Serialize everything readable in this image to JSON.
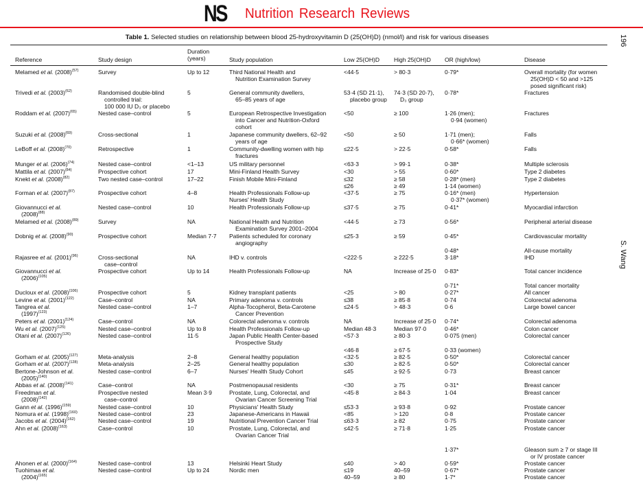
{
  "journal": {
    "logo": "NS",
    "title": "Nutrition Research Reviews"
  },
  "page_number": "196",
  "running_author": "S. Wang",
  "table": {
    "label": "Table 1.",
    "caption": "Selected studies on relationship between blood 25-hydroxyvitamin D (25(OH)D) (nmol/l) and risk for various diseases",
    "headers": {
      "reference": "Reference",
      "design": "Study design",
      "duration": [
        "Duration",
        "(years)"
      ],
      "population": "Study population",
      "low": "Low 25(OH)D",
      "high": "High 25(OH)D",
      "or": "OR (high/low)",
      "disease": "Disease"
    },
    "etal": "et al.",
    "rows": [
      {
        "ref": {
          "author": "Melamed",
          "year": "(2008)",
          "sup": "(57)"
        },
        "design": [
          "Survey"
        ],
        "duration": [
          "Up to 12"
        ],
        "population": [
          "Third National Health and",
          "Nutrition Examination Survey"
        ],
        "low": [
          "<44·5"
        ],
        "high": [
          "> 80·3"
        ],
        "or": [
          "0·79*"
        ],
        "disease": [
          "Overall mortality (for women",
          "25(OH)D < 50 and >125",
          "posed significant risk)"
        ]
      },
      {
        "ref": {
          "author": "Trivedi",
          "year": "(2003)",
          "sup": "(62)"
        },
        "design": [
          "Randomised double-blind",
          "controlled trial:",
          "100 000 IU D₃ or placebo"
        ],
        "duration": [
          "5"
        ],
        "population": [
          "General community dwellers,",
          "65–85 years of age"
        ],
        "low": [
          "53·4 (SD 21·1),",
          "placebo group"
        ],
        "high": [
          "74·3 (SD 20·7),",
          "D₃ group"
        ],
        "or": [
          "0·78*"
        ],
        "disease": [
          "Fractures"
        ]
      },
      {
        "ref": {
          "author": "Roddam",
          "year": "(2007)",
          "sup": "(65)"
        },
        "design": [
          "Nested case–control"
        ],
        "duration": [
          "5"
        ],
        "population": [
          "European Retrospective Investigation",
          "into Cancer and Nutrition-Oxford",
          "cohort"
        ],
        "low": [
          "<50"
        ],
        "high": [
          "≥ 100"
        ],
        "or": [
          "1·26 (men);",
          "0·94 (women)"
        ],
        "disease": [
          "Fractures"
        ]
      },
      {
        "ref": {
          "author": "Suzuki",
          "year": "(2008)",
          "sup": "(69)"
        },
        "design": [
          "Cross-sectional"
        ],
        "duration": [
          "1"
        ],
        "population": [
          "Japanese community dwellers, 62–92",
          "years of age"
        ],
        "low": [
          "<50"
        ],
        "high": [
          "≥ 50"
        ],
        "or": [
          "1·71 (men);",
          "0·66* (women)"
        ],
        "disease": [
          "Falls"
        ]
      },
      {
        "ref": {
          "author": "LeBoff",
          "year": "(2008)",
          "sup": "(70)"
        },
        "design": [
          "Retrospective"
        ],
        "duration": [
          "1"
        ],
        "population": [
          "Community-dwelling women with hip",
          "fractures"
        ],
        "low": [
          "≤22·5"
        ],
        "high": [
          "> 22·5"
        ],
        "or": [
          "0·58*"
        ],
        "disease": [
          "Falls"
        ]
      },
      {
        "ref": {
          "author": "Munger",
          "year": "(2006)",
          "sup": "(74)"
        },
        "design": [
          "Nested case–control"
        ],
        "duration": [
          "<1–13"
        ],
        "population": [
          "US military personnel"
        ],
        "low": [
          "<63·3"
        ],
        "high": [
          "> 99·1"
        ],
        "or": [
          "0·38*"
        ],
        "disease": [
          "Multiple sclerosis"
        ]
      },
      {
        "ref": {
          "author": "Mattila",
          "year": "(2007)",
          "sup": "(84)"
        },
        "design": [
          "Prospective cohort"
        ],
        "duration": [
          "17"
        ],
        "population": [
          "Mini-Finland Health Survey"
        ],
        "low": [
          "<30"
        ],
        "high": [
          "> 55"
        ],
        "or": [
          "0·60*"
        ],
        "disease": [
          "Type 2 diabetes"
        ]
      },
      {
        "ref": {
          "author": "Knekt",
          "year": "(2008)",
          "sup": "(82)"
        },
        "design": [
          "Two nested case–control"
        ],
        "duration": [
          "17–22"
        ],
        "population": [
          "Finish Mobile Mini-Finland"
        ],
        "low": [
          "≤32",
          "≤26"
        ],
        "high": [
          "≥ 58",
          "≥ 49"
        ],
        "or": [
          "0·28* (men)",
          "1·14 (women)"
        ],
        "disease": [
          "Type 2 diabetes"
        ]
      },
      {
        "ref": {
          "author": "Forman",
          "year": "(2007)",
          "sup": "(87)"
        },
        "design": [
          "Prospective cohort"
        ],
        "duration": [
          "4–8"
        ],
        "population": [
          "Health Professionals Follow-up",
          "Nurses' Health Study"
        ],
        "low": [
          "<37·5"
        ],
        "high": [
          "≥ 75"
        ],
        "or": [
          "0·16* (men)",
          "0·37* (women)"
        ],
        "disease": [
          "Hypertension"
        ]
      },
      {
        "ref": {
          "author": "Giovannucci",
          "year": "(2008)",
          "sup": "(88)"
        },
        "design": [
          "Nested case–control"
        ],
        "duration": [
          "10"
        ],
        "population": [
          "Health Professionals Follow-up"
        ],
        "low": [
          "≤37·5"
        ],
        "high": [
          "≥ 75"
        ],
        "or": [
          "0·41*"
        ],
        "disease": [
          "Myocardial infarction"
        ]
      },
      {
        "ref": {
          "author": "Melamed",
          "year": "(2008)",
          "sup": "(89)"
        },
        "design": [
          "Survey"
        ],
        "duration": [
          "NA"
        ],
        "population": [
          "National Health and Nutrition",
          "Examination Survey 2001–2004"
        ],
        "low": [
          "<44·5"
        ],
        "high": [
          "≥ 73"
        ],
        "or": [
          "0·56*"
        ],
        "disease": [
          "Peripheral arterial disease"
        ]
      },
      {
        "ref": {
          "author": "Dobnig",
          "year": "(2008)",
          "sup": "(90)"
        },
        "design": [
          "Prospective cohort"
        ],
        "duration": [
          "Median 7·7"
        ],
        "population": [
          "Patients scheduled for coronary",
          "angiography"
        ],
        "low": [
          "≤25·3"
        ],
        "high": [
          "≥ 59"
        ],
        "or": [
          "0·45*"
        ],
        "disease": [
          "Cardiovascular mortality"
        ]
      },
      {
        "ref": null,
        "design": [],
        "duration": [],
        "population": [],
        "low": [],
        "high": [],
        "or": [
          "0·48*"
        ],
        "disease": [
          "All-cause mortality"
        ]
      },
      {
        "ref": {
          "author": "Rajasree",
          "year": "(2001)",
          "sup": "(96)"
        },
        "design": [
          "Cross-sectional",
          "case–control"
        ],
        "duration": [
          "NA"
        ],
        "population": [
          "IHD v. controls"
        ],
        "low": [
          "<222·5"
        ],
        "high": [
          "≥ 222·5"
        ],
        "or": [
          "3·18*"
        ],
        "disease": [
          "IHD"
        ]
      },
      {
        "ref": {
          "author": "Giovannucci",
          "year": "(2006)",
          "sup": "(105)"
        },
        "design": [
          "Prospective cohort"
        ],
        "duration": [
          "Up to 14"
        ],
        "population": [
          "Health Professionals Follow-up"
        ],
        "low": [
          "NA"
        ],
        "high": [
          "Increase of 25·0"
        ],
        "or": [
          "0·83*"
        ],
        "disease": [
          "Total cancer incidence"
        ]
      },
      {
        "ref": null,
        "design": [],
        "duration": [],
        "population": [],
        "low": [],
        "high": [],
        "or": [
          "0·71*"
        ],
        "disease": [
          "Total cancer mortality"
        ]
      },
      {
        "ref": {
          "author": "Ducloux",
          "year": "(2008)",
          "sup": "(106)"
        },
        "design": [
          "Prospective cohort"
        ],
        "duration": [
          "5"
        ],
        "population": [
          "Kidney transplant patients"
        ],
        "low": [
          "<25"
        ],
        "high": [
          "> 80"
        ],
        "or": [
          "0·27*"
        ],
        "disease": [
          "All cancer"
        ]
      },
      {
        "ref": {
          "author": "Levine",
          "year": "(2001)",
          "sup": "(122)"
        },
        "design": [
          "Case–control"
        ],
        "duration": [
          "NA"
        ],
        "population": [
          "Primary adenoma v. controls"
        ],
        "low": [
          "≤38"
        ],
        "high": [
          "≥ 85·8"
        ],
        "or": [
          "0·74"
        ],
        "disease": [
          "Colorectal adenoma"
        ]
      },
      {
        "ref": {
          "author": "Tangrea",
          "year": "(1997)",
          "sup": "(123)"
        },
        "design": [
          "Nested case–control"
        ],
        "duration": [
          "1–7"
        ],
        "population": [
          "Alpha-Tocopherol, Beta-Carotene",
          "Cancer Prevention"
        ],
        "low": [
          "≤24·5"
        ],
        "high": [
          "> 48·3"
        ],
        "or": [
          "0·6"
        ],
        "disease": [
          "Large bowel cancer"
        ]
      },
      {
        "ref": {
          "author": "Peters",
          "year": "(2001)",
          "sup": "(124)"
        },
        "design": [
          "Case–control"
        ],
        "duration": [
          "NA"
        ],
        "population": [
          "Colorectal adenoma v. controls"
        ],
        "low": [
          "NA"
        ],
        "high": [
          "Increase of 25·0"
        ],
        "or": [
          "0·74*"
        ],
        "disease": [
          "Colorectal adenoma"
        ]
      },
      {
        "ref": {
          "author": "Wu",
          "year": "(2007)",
          "sup": "(125)"
        },
        "design": [
          "Nested case–control"
        ],
        "duration": [
          "Up to 8"
        ],
        "population": [
          "Health Professionals Follow-up"
        ],
        "low": [
          "Median 48·3"
        ],
        "high": [
          "Median 97·0"
        ],
        "or": [
          "0·46*"
        ],
        "disease": [
          "Colon cancer"
        ]
      },
      {
        "ref": {
          "author": "Otani",
          "year": "(2007)",
          "sup": "(126)"
        },
        "design": [
          "Nested case–control"
        ],
        "duration": [
          "11·5"
        ],
        "population": [
          "Japan Public Health Center-based",
          "Prospective Study"
        ],
        "low": [
          "<57·3"
        ],
        "high": [
          "≥ 80·3"
        ],
        "or": [
          "0·075 (men)"
        ],
        "disease": [
          "Colorectal cancer"
        ]
      },
      {
        "ref": null,
        "design": [],
        "duration": [],
        "population": [],
        "low": [
          "<46·8"
        ],
        "high": [
          "≥ 67·5"
        ],
        "or": [
          "0·33 (women)"
        ],
        "disease": []
      },
      {
        "ref": {
          "author": "Gorham",
          "year": "(2005)",
          "sup": "(127)"
        },
        "design": [
          "Meta-analysis"
        ],
        "duration": [
          "2–8"
        ],
        "population": [
          "General healthy population"
        ],
        "low": [
          "<32·5"
        ],
        "high": [
          "≥ 82·5"
        ],
        "or": [
          "0·50*"
        ],
        "disease": [
          "Colorectal cancer"
        ]
      },
      {
        "ref": {
          "author": "Gorham",
          "year": "(2007)",
          "sup": "(128)"
        },
        "design": [
          "Meta-analysis"
        ],
        "duration": [
          "2–25"
        ],
        "population": [
          "General healthy population"
        ],
        "low": [
          "≤30"
        ],
        "high": [
          "≥ 82·5"
        ],
        "or": [
          "0·50*"
        ],
        "disease": [
          "Colorectal cancer"
        ]
      },
      {
        "ref": {
          "author": "Bertone-Johnson",
          "year": "(2005)",
          "sup": "(140)"
        },
        "design": [
          "Nested case–control"
        ],
        "duration": [
          "6–7"
        ],
        "population": [
          "Nurses' Health Study Cohort"
        ],
        "low": [
          "≤45"
        ],
        "high": [
          "≥ 92·5"
        ],
        "or": [
          "0·73"
        ],
        "disease": [
          "Breast cancer"
        ]
      },
      {
        "ref": {
          "author": "Abbas",
          "year": "(2008)",
          "sup": "(141)"
        },
        "design": [
          "Case–control"
        ],
        "duration": [
          "NA"
        ],
        "population": [
          "Postmenopausal residents"
        ],
        "low": [
          "<30"
        ],
        "high": [
          "≥ 75"
        ],
        "or": [
          "0·31*"
        ],
        "disease": [
          "Breast cancer"
        ]
      },
      {
        "ref": {
          "author": "Freedman",
          "year": "(2008)",
          "sup": "(142)"
        },
        "design": [
          "Prospective nested",
          "case–control"
        ],
        "duration": [
          "Mean 3·9"
        ],
        "population": [
          "Prostate, Lung, Colorectal, and",
          "Ovarian Cancer Screening Trial"
        ],
        "low": [
          "<45·8"
        ],
        "high": [
          "≥ 84·3"
        ],
        "or": [
          "1·04"
        ],
        "disease": [
          "Breast cancer"
        ]
      },
      {
        "ref": {
          "author": "Gann",
          "year": "(1996)",
          "sup": "(159)"
        },
        "design": [
          "Nested case–control"
        ],
        "duration": [
          "10"
        ],
        "population": [
          "Physicians' Health Study"
        ],
        "low": [
          "≤53·3"
        ],
        "high": [
          "≥ 93·8"
        ],
        "or": [
          "0·92"
        ],
        "disease": [
          "Prostate cancer"
        ]
      },
      {
        "ref": {
          "author": "Nomura",
          "year": "(1998)",
          "sup": "(160)"
        },
        "design": [
          "Nested case–control"
        ],
        "duration": [
          "23"
        ],
        "population": [
          "Japanese-Americans in Hawaii"
        ],
        "low": [
          "<85"
        ],
        "high": [
          "> 120"
        ],
        "or": [
          "0·8"
        ],
        "disease": [
          "Prostate cancer"
        ]
      },
      {
        "ref": {
          "author": "Jacobs",
          "year": "(2004)",
          "sup": "(162)"
        },
        "design": [
          "Nested case–control"
        ],
        "duration": [
          "19"
        ],
        "population": [
          "Nutritional Prevention Cancer Trial"
        ],
        "low": [
          "≤63·3"
        ],
        "high": [
          "≥ 82"
        ],
        "or": [
          "0·75"
        ],
        "disease": [
          "Prostate cancer"
        ]
      },
      {
        "ref": {
          "author": "Ahn",
          "year": "(2008)",
          "sup": "(163)"
        },
        "design": [
          "Case–control"
        ],
        "duration": [
          "10"
        ],
        "population": [
          "Prostate, Lung, Colorectal, and",
          "Ovarian Cancer Trial"
        ],
        "low": [
          "≤42·5"
        ],
        "high": [
          "≥ 71·8"
        ],
        "or": [
          "1·25"
        ],
        "disease": [
          "Prostate cancer"
        ]
      },
      {
        "ref": null,
        "design": [],
        "duration": [],
        "population": [],
        "low": [],
        "high": [],
        "or": [
          "1·37*"
        ],
        "disease": [
          "Gleason sum ≥ 7 or stage III",
          "or IV prostate cancer"
        ]
      },
      {
        "ref": {
          "author": "Ahonen",
          "year": "(2000)",
          "sup": "(164)"
        },
        "design": [
          "Nested case–control"
        ],
        "duration": [
          "13"
        ],
        "population": [
          "Helsinki Heart Study"
        ],
        "low": [
          "≤40"
        ],
        "high": [
          "> 40"
        ],
        "or": [
          "0·59*"
        ],
        "disease": [
          "Prostate cancer"
        ]
      },
      {
        "ref": {
          "author": "Tuohimaa",
          "year": "(2004)",
          "sup": "(165)"
        },
        "design": [
          "Nested case–control"
        ],
        "duration": [
          "Up to 24"
        ],
        "population": [
          "Nordic men"
        ],
        "low": [
          "≤19"
        ],
        "high": [
          "40–59"
        ],
        "or": [
          "0·67*"
        ],
        "disease": [
          "Prostate cancer"
        ]
      },
      {
        "ref": null,
        "design": [],
        "duration": [],
        "population": [],
        "low": [
          "40–59"
        ],
        "high": [
          "≥ 80"
        ],
        "or": [
          "1·7*"
        ],
        "disease": [
          "Prostate cancer"
        ]
      }
    ]
  }
}
